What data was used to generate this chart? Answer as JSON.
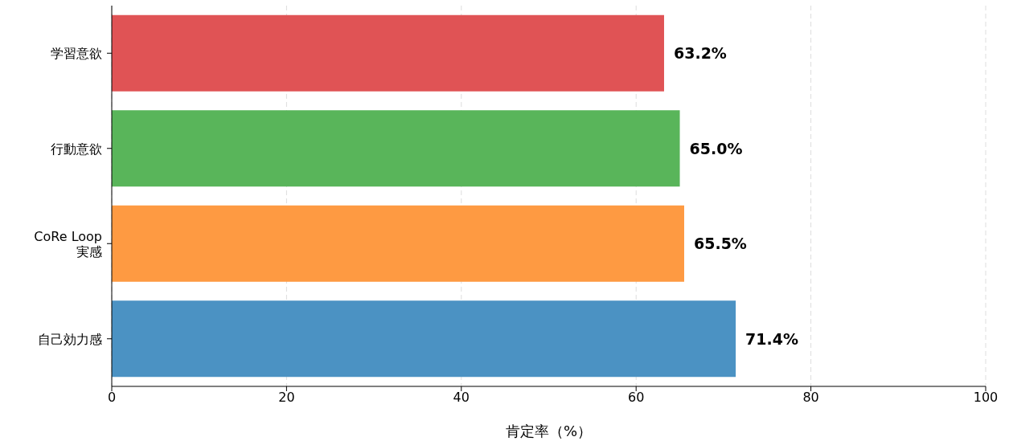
{
  "chart_data": {
    "type": "bar",
    "orientation": "horizontal",
    "categories": [
      "学習意欲",
      "行動意欲",
      "CoRe Loop\n実感",
      "自己効力感"
    ],
    "values": [
      63.2,
      65.0,
      65.5,
      71.4
    ],
    "colors": [
      "#e05355",
      "#59b55a",
      "#fe9a42",
      "#4b92c3"
    ],
    "value_labels": [
      "63.2%",
      "65.0%",
      "65.5%",
      "71.4%"
    ],
    "xlim": [
      0,
      100
    ],
    "xticks": [
      0,
      20,
      40,
      60,
      80,
      100
    ],
    "xlabel": "肯定率（%）",
    "grid": "x"
  }
}
